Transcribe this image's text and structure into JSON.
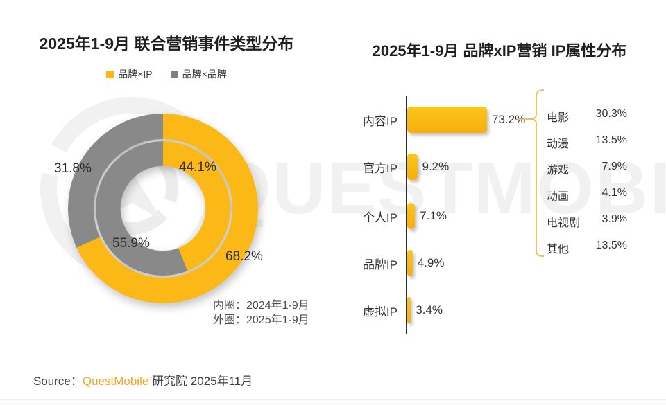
{
  "colors": {
    "accent_yellow": "#FBB817",
    "gray": "#898989",
    "brace": "#F3B84C",
    "brand_orange": "#F5A623"
  },
  "watermark_text": "QUESTMOBILE",
  "left_chart": {
    "title": "2025年1-9月 联合营销事件类型分布",
    "legend": [
      {
        "label": "品牌×IP"
      },
      {
        "label": "品牌×品牌"
      }
    ],
    "labels": {
      "outer_gray": "31.8%",
      "inner_yellow": "44.1%",
      "inner_gray": "55.9%",
      "outer_yellow": "68.2%"
    },
    "note_line1": "内圈：2024年1-9月",
    "note_line2": "外圈：2025年1-9月"
  },
  "right_chart": {
    "title": "2025年1-9月 品牌xIP营销 IP属性分布",
    "bars": [
      {
        "label": "内容IP",
        "value": "73.2%"
      },
      {
        "label": "官方IP",
        "value": "9.2%"
      },
      {
        "label": "个人IP",
        "value": "7.1%"
      },
      {
        "label": "品牌IP",
        "value": "4.9%"
      },
      {
        "label": "虚拟IP",
        "value": "3.4%"
      }
    ],
    "breakdown": [
      {
        "label": "电影",
        "value": "30.3%"
      },
      {
        "label": "动漫",
        "value": "13.5%"
      },
      {
        "label": "游戏",
        "value": "7.9%"
      },
      {
        "label": "动画",
        "value": "4.1%"
      },
      {
        "label": "电视剧",
        "value": "3.9%"
      },
      {
        "label": "其他",
        "value": "13.5%"
      }
    ]
  },
  "footer": {
    "prefix": "Source：",
    "brand": "QuestMobile",
    "rest": " 研究院 2025年11月"
  },
  "chart_data": [
    {
      "type": "pie",
      "subtype": "double-ring-donut",
      "title": "2025年1-9月 联合营销事件类型分布",
      "categories": [
        "品牌×IP",
        "品牌×品牌"
      ],
      "series": [
        {
          "name": "内圈 2024年1-9月",
          "values": [
            44.1,
            55.9
          ]
        },
        {
          "name": "外圈 2025年1-9月",
          "values": [
            68.2,
            31.8
          ]
        }
      ],
      "legend_position": "top",
      "start_angle_deg": 0,
      "direction": "clockwise"
    },
    {
      "type": "bar",
      "orientation": "horizontal",
      "title": "2025年1-9月 品牌xIP营销 IP属性分布",
      "categories": [
        "内容IP",
        "官方IP",
        "个人IP",
        "品牌IP",
        "虚拟IP"
      ],
      "values": [
        73.2,
        9.2,
        7.1,
        4.9,
        3.4
      ],
      "xlim": [
        0,
        80
      ],
      "grid": false,
      "annotation": {
        "target": "内容IP",
        "breakdown_categories": [
          "电影",
          "动漫",
          "游戏",
          "动画",
          "电视剧",
          "其他"
        ],
        "breakdown_values": [
          30.3,
          13.5,
          7.9,
          4.1,
          3.9,
          13.5
        ]
      }
    }
  ]
}
